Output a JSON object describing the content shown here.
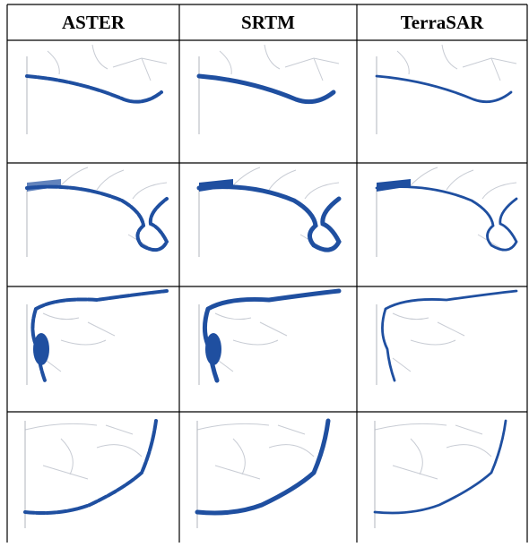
{
  "header": {
    "columns": [
      "ASTER",
      "SRTM",
      "TerraSAR"
    ]
  }
}
